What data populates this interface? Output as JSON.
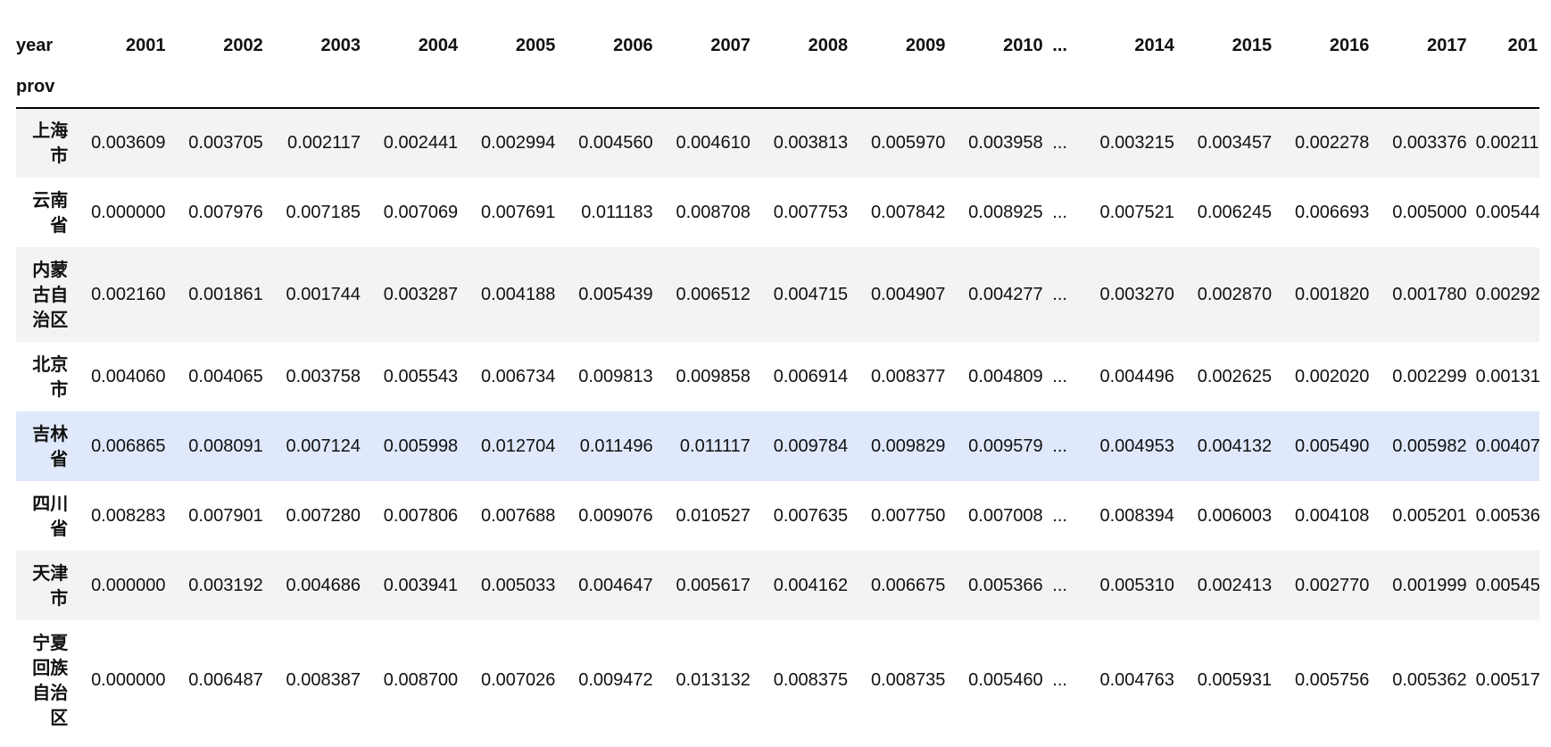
{
  "table": {
    "column_index_name": "year",
    "row_index_name": "prov",
    "ellipsis": "...",
    "columns": [
      "2001",
      "2002",
      "2003",
      "2004",
      "2005",
      "2006",
      "2007",
      "2008",
      "2009",
      "2010",
      "...",
      "2014",
      "2015",
      "2016",
      "2017",
      "201"
    ],
    "rows": [
      {
        "prov": "上海市",
        "values": [
          "0.003609",
          "0.003705",
          "0.002117",
          "0.002441",
          "0.002994",
          "0.004560",
          "0.004610",
          "0.003813",
          "0.005970",
          "0.003958",
          "...",
          "0.003215",
          "0.003457",
          "0.002278",
          "0.003376",
          "0.00211"
        ]
      },
      {
        "prov": "云南省",
        "values": [
          "0.000000",
          "0.007976",
          "0.007185",
          "0.007069",
          "0.007691",
          "0.011183",
          "0.008708",
          "0.007753",
          "0.007842",
          "0.008925",
          "...",
          "0.007521",
          "0.006245",
          "0.006693",
          "0.005000",
          "0.00544"
        ]
      },
      {
        "prov": "内蒙古自治区",
        "values": [
          "0.002160",
          "0.001861",
          "0.001744",
          "0.003287",
          "0.004188",
          "0.005439",
          "0.006512",
          "0.004715",
          "0.004907",
          "0.004277",
          "...",
          "0.003270",
          "0.002870",
          "0.001820",
          "0.001780",
          "0.00292"
        ]
      },
      {
        "prov": "北京市",
        "values": [
          "0.004060",
          "0.004065",
          "0.003758",
          "0.005543",
          "0.006734",
          "0.009813",
          "0.009858",
          "0.006914",
          "0.008377",
          "0.004809",
          "...",
          "0.004496",
          "0.002625",
          "0.002020",
          "0.002299",
          "0.00131"
        ]
      },
      {
        "prov": "吉林省",
        "values": [
          "0.006865",
          "0.008091",
          "0.007124",
          "0.005998",
          "0.012704",
          "0.011496",
          "0.011117",
          "0.009784",
          "0.009829",
          "0.009579",
          "...",
          "0.004953",
          "0.004132",
          "0.005490",
          "0.005982",
          "0.00407"
        ]
      },
      {
        "prov": "四川省",
        "values": [
          "0.008283",
          "0.007901",
          "0.007280",
          "0.007806",
          "0.007688",
          "0.009076",
          "0.010527",
          "0.007635",
          "0.007750",
          "0.007008",
          "...",
          "0.008394",
          "0.006003",
          "0.004108",
          "0.005201",
          "0.00536"
        ]
      },
      {
        "prov": "天津市",
        "values": [
          "0.000000",
          "0.003192",
          "0.004686",
          "0.003941",
          "0.005033",
          "0.004647",
          "0.005617",
          "0.004162",
          "0.006675",
          "0.005366",
          "...",
          "0.005310",
          "0.002413",
          "0.002770",
          "0.001999",
          "0.00545"
        ]
      },
      {
        "prov": "宁夏回族自治区",
        "values": [
          "0.000000",
          "0.006487",
          "0.008387",
          "0.008700",
          "0.007026",
          "0.009472",
          "0.013132",
          "0.008375",
          "0.008735",
          "0.005460",
          "...",
          "0.004763",
          "0.005931",
          "0.005756",
          "0.005362",
          "0.00517"
        ]
      }
    ]
  },
  "colors": {
    "odd_row": "#f3f3f3",
    "even_row": "#ffffff",
    "hover_row": "#dfe9fb",
    "right_border": "#5cc06a"
  }
}
